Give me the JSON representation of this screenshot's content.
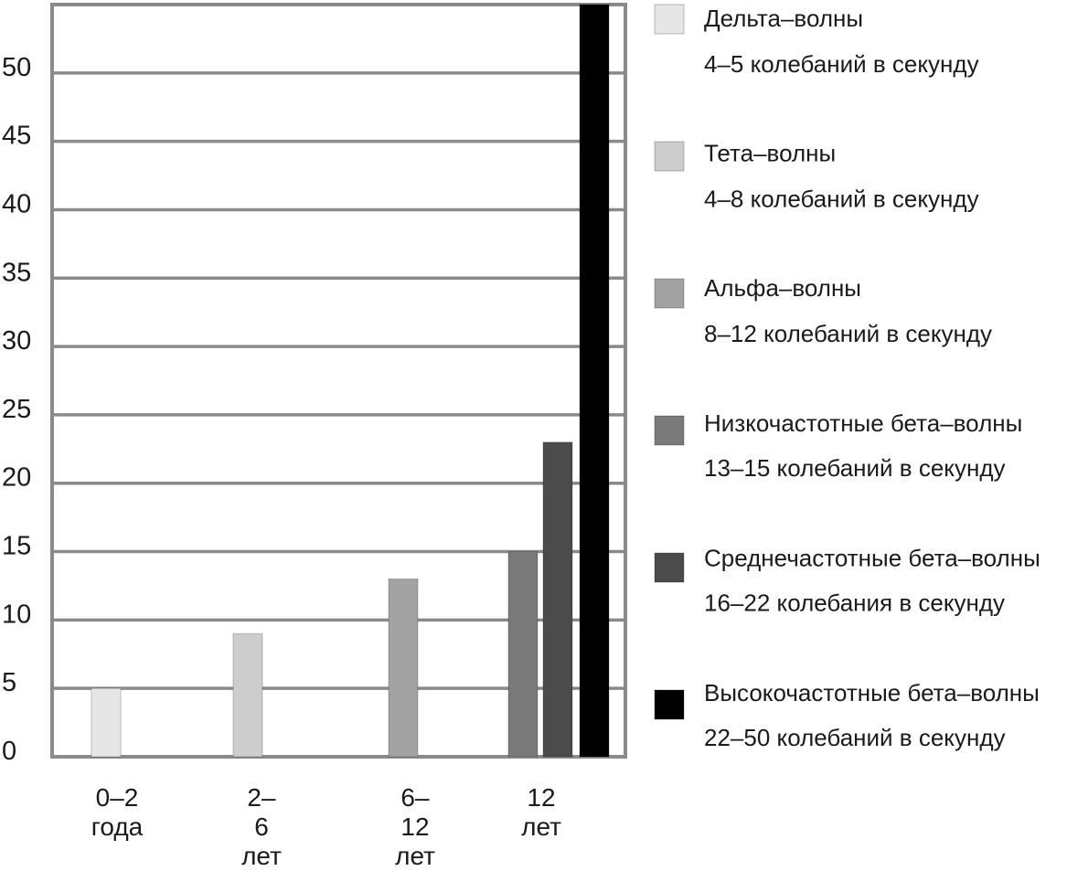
{
  "chart_data": {
    "type": "bar",
    "categories": [
      "0–2 года",
      "2–6 лет",
      "6–12 лет",
      "12 лет"
    ],
    "ylim": [
      0,
      55
    ],
    "yticks": [
      0,
      5,
      10,
      15,
      20,
      25,
      30,
      35,
      40,
      45,
      50
    ],
    "grid": true,
    "legend": "right",
    "series": [
      {
        "name": "Дельта–волны",
        "description": "4–5 колебаний в секунду",
        "color": "#e6e6e6",
        "values": [
          5,
          null,
          null,
          null
        ]
      },
      {
        "name": "Тета–волны",
        "description": "4–8 колебаний в секунду",
        "color": "#cdcdcd",
        "values": [
          null,
          9,
          null,
          null
        ]
      },
      {
        "name": "Альфа–волны",
        "description": "8–12 колебаний в секунду",
        "color": "#a2a2a2",
        "values": [
          null,
          null,
          13,
          null
        ]
      },
      {
        "name": "Низкочастотные бета–волны",
        "description": "13–15 колебаний в секунду",
        "color": "#7a7a7a",
        "values": [
          null,
          null,
          null,
          15
        ]
      },
      {
        "name": "Среднечастотные бета–волны",
        "description": "16–22 колебания в секунду",
        "color": "#4b4b4b",
        "values": [
          null,
          null,
          null,
          23
        ]
      },
      {
        "name": "Высокочастотные бета–волны",
        "description": "22–50 колебаний в секунду",
        "color": "#000000",
        "values": [
          null,
          null,
          null,
          55
        ]
      }
    ]
  }
}
